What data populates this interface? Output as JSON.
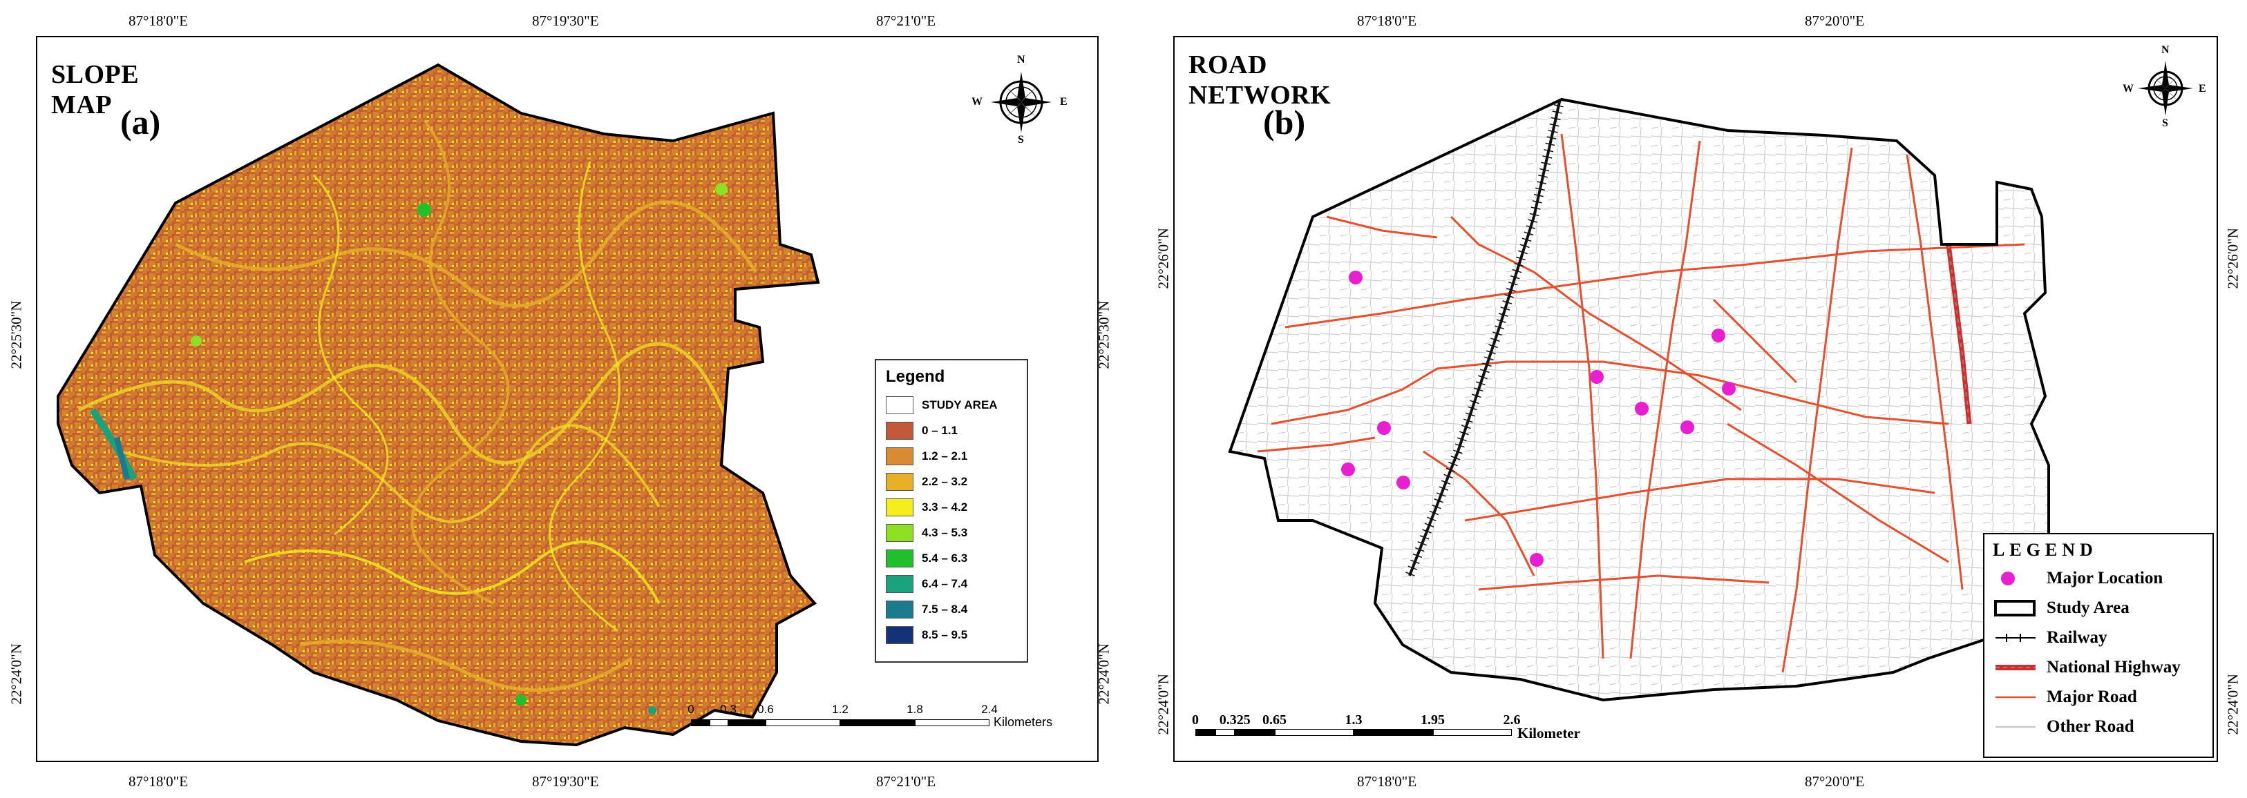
{
  "panel_a": {
    "title": "SLOPE MAP",
    "label": "(a)",
    "coords_top": [
      "87°18'0\"E",
      "87°19'30\"E",
      "87°21'0\"E"
    ],
    "coords_bottom": [
      "87°18'0\"E",
      "87°19'30\"E",
      "87°21'0\"E"
    ],
    "coords_left": [
      "22°25'30\"N",
      "22°24'0\"N"
    ],
    "coords_right": [
      "22°25'30\"N",
      "22°24'0\"N"
    ],
    "compass": {
      "n": "N",
      "s": "S",
      "e": "E",
      "w": "W"
    },
    "legend": {
      "title": "Legend",
      "items": [
        {
          "label": "STUDY AREA",
          "color": "#ffffff"
        },
        {
          "label": "0 – 1.1",
          "color": "#c1593a"
        },
        {
          "label": "1.2 – 2.1",
          "color": "#d88a34"
        },
        {
          "label": "2.2 – 3.2",
          "color": "#e8b027"
        },
        {
          "label": "3.3 – 4.2",
          "color": "#f4ee1e"
        },
        {
          "label": "4.3 – 5.3",
          "color": "#8ee022"
        },
        {
          "label": "5.4 – 6.3",
          "color": "#20c02c"
        },
        {
          "label": "6.4 – 7.4",
          "color": "#19a27c"
        },
        {
          "label": "7.5 – 8.4",
          "color": "#1a7a8e"
        },
        {
          "label": "8.5 – 9.5",
          "color": "#14327a"
        }
      ]
    },
    "scale": {
      "ticks": [
        "0",
        "0.3",
        "0.6",
        "1.2",
        "1.8",
        "2.4"
      ],
      "unit": "Kilometers"
    }
  },
  "panel_b": {
    "title": "ROAD NETWORK",
    "label": "(b)",
    "coords_top": [
      "87°18'0\"E",
      "87°20'0\"E"
    ],
    "coords_bottom": [
      "87°18'0\"E",
      "87°20'0\"E"
    ],
    "coords_left": [
      "22°26'0\"N",
      "22°24'0\"N"
    ],
    "coords_right": [
      "22°26'0\"N",
      "22°24'0\"N"
    ],
    "compass": {
      "n": "N",
      "s": "S",
      "e": "E",
      "w": "W"
    },
    "legend": {
      "title": "LEGEND",
      "items": [
        {
          "label": "Major  Location",
          "symbol": "dot",
          "color": "#e81fd0"
        },
        {
          "label": "Study Area",
          "symbol": "box",
          "color": "#000000"
        },
        {
          "label": "Railway",
          "symbol": "rail",
          "color": "#000000"
        },
        {
          "label": "National Highway",
          "symbol": "highway",
          "color": "#d62b2b"
        },
        {
          "label": "Major Road",
          "symbol": "line",
          "color": "#e4502f"
        },
        {
          "label": "Other Road",
          "symbol": "line",
          "color": "#c8c8c8"
        }
      ]
    },
    "scale": {
      "ticks": [
        "0",
        "0.325",
        "0.65",
        "1.3",
        "1.95",
        "2.6"
      ],
      "unit": "Kilometer"
    }
  }
}
